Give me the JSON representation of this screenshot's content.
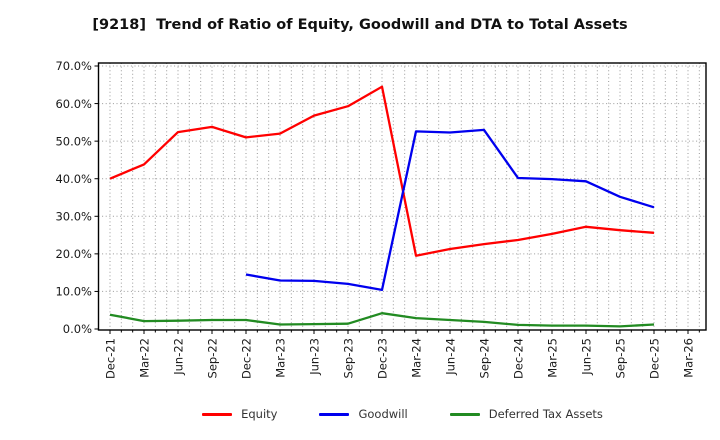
{
  "title": "[9218]  Trend of Ratio of Equity, Goodwill and DTA to Total Assets",
  "chart_data": {
    "type": "line",
    "title": "[9218]  Trend of Ratio of Equity, Goodwill and DTA to Total Assets",
    "categories": [
      "Dec-21",
      "Mar-22",
      "Jun-22",
      "Sep-22",
      "Dec-22",
      "Mar-23",
      "Jun-23",
      "Sep-23",
      "Dec-23",
      "Mar-24",
      "Jun-24",
      "Sep-24",
      "Dec-24",
      "Mar-25",
      "Jun-25",
      "Sep-25",
      "Dec-25",
      "Mar-26"
    ],
    "series": [
      {
        "name": "Equity",
        "color": "#ff0000",
        "values": [
          40.0,
          43.8,
          52.4,
          53.8,
          51.0,
          52.0,
          56.8,
          59.3,
          64.5,
          19.5,
          21.3,
          22.6,
          23.7,
          25.3,
          27.2,
          26.3,
          25.6,
          null
        ]
      },
      {
        "name": "Goodwill",
        "color": "#0000ee",
        "values": [
          null,
          null,
          null,
          null,
          14.5,
          12.9,
          12.8,
          12.0,
          10.4,
          52.6,
          52.3,
          53.0,
          40.2,
          39.9,
          39.3,
          35.2,
          32.4,
          null
        ]
      },
      {
        "name": "Deferred Tax Assets",
        "color": "#228b22",
        "values": [
          3.8,
          2.1,
          2.2,
          2.4,
          2.4,
          1.2,
          1.3,
          1.4,
          4.2,
          2.9,
          2.4,
          1.9,
          1.1,
          0.9,
          0.9,
          0.7,
          1.2,
          null
        ]
      }
    ],
    "y_ticks": [
      "0.0%",
      "10.0%",
      "20.0%",
      "30.0%",
      "40.0%",
      "50.0%",
      "60.0%",
      "70.0%"
    ],
    "ylim": [
      0,
      71
    ],
    "xlabel": "",
    "ylabel": "",
    "grid": "dotted",
    "legend_position": "bottom"
  }
}
